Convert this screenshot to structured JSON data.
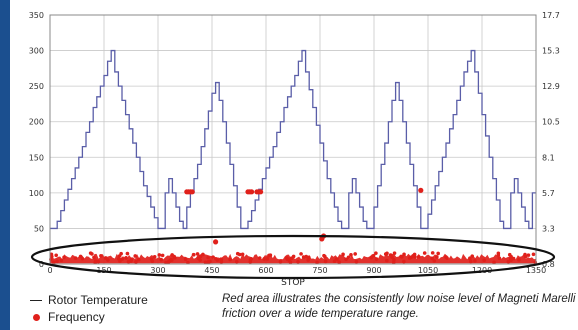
{
  "legend": {
    "line_label": "Rotor Temperature",
    "dot_label": "Frequency"
  },
  "note": "Red area illustrates the consistently low noise level of Magneti Marelli friction over a wide temperature range.",
  "colors": {
    "temperature_line": "#5a5ea8",
    "frequency_dots": "#e0201b",
    "background_frame": "#1b4f8f",
    "grid": "#c8c8c8",
    "highlight_ellipse": "#111111"
  },
  "chart_data": {
    "type": "line",
    "xlabel": "STOP",
    "xlim": [
      0,
      1350
    ],
    "ylim": [
      0,
      350
    ],
    "y2lim": [
      0.8,
      17.7
    ],
    "x_ticks": [
      "0",
      "150",
      "300",
      "450",
      "600",
      "750",
      "900",
      "1050",
      "1200",
      "1350"
    ],
    "y_ticks": [
      "0",
      "50",
      "100",
      "150",
      "200",
      "250",
      "300",
      "350"
    ],
    "y2_ticks": [
      "0.8",
      "3.3",
      "5.7",
      "8.1",
      "10.5",
      "12.9",
      "15.3",
      "17.7"
    ],
    "grid": true,
    "annotation": "ellipse around low frequency band",
    "series": [
      {
        "name": "Rotor Temperature",
        "axis": "left",
        "style": "step",
        "x": [
          0,
          10,
          20,
          30,
          40,
          50,
          60,
          70,
          80,
          90,
          100,
          110,
          120,
          130,
          140,
          150,
          160,
          170,
          180,
          190,
          200,
          210,
          220,
          230,
          240,
          250,
          260,
          270,
          280,
          290,
          300,
          310,
          320,
          330,
          340,
          350,
          360,
          370,
          380,
          390,
          400,
          410,
          420,
          430,
          440,
          450,
          460,
          470,
          480,
          490,
          500,
          510,
          520,
          530,
          540,
          550,
          560,
          570,
          580,
          590,
          600,
          610,
          620,
          630,
          640,
          650,
          660,
          670,
          680,
          690,
          700,
          710,
          720,
          730,
          740,
          750,
          760,
          770,
          780,
          790,
          800,
          810,
          820,
          830,
          840,
          850,
          860,
          870,
          880,
          890,
          900,
          910,
          920,
          930,
          940,
          950,
          960,
          970,
          980,
          990,
          1000,
          1010,
          1020,
          1030,
          1040,
          1050,
          1060,
          1070,
          1080,
          1090,
          1100,
          1110,
          1120,
          1130,
          1140,
          1150,
          1160,
          1170,
          1180,
          1190,
          1200,
          1210,
          1220,
          1230,
          1240,
          1250,
          1260,
          1270,
          1280,
          1290,
          1300,
          1310,
          1320,
          1330,
          1340
        ],
        "values": [
          50,
          50,
          60,
          75,
          90,
          105,
          120,
          135,
          150,
          165,
          185,
          200,
          220,
          235,
          250,
          265,
          285,
          300,
          270,
          250,
          230,
          210,
          190,
          170,
          150,
          130,
          110,
          95,
          80,
          65,
          50,
          50,
          100,
          120,
          100,
          80,
          60,
          50,
          80,
          100,
          120,
          140,
          165,
          190,
          215,
          240,
          255,
          230,
          200,
          170,
          140,
          110,
          80,
          50,
          50,
          60,
          75,
          90,
          105,
          120,
          135,
          150,
          165,
          185,
          200,
          220,
          235,
          250,
          265,
          285,
          300,
          270,
          245,
          220,
          195,
          170,
          145,
          120,
          100,
          80,
          60,
          50,
          50,
          100,
          120,
          100,
          80,
          60,
          50,
          50,
          80,
          110,
          140,
          170,
          200,
          230,
          255,
          230,
          200,
          170,
          140,
          110,
          80,
          50,
          50,
          70,
          90,
          110,
          130,
          150,
          170,
          190,
          210,
          230,
          250,
          270,
          285,
          300,
          270,
          240,
          210,
          180,
          150,
          120,
          90,
          60,
          50,
          50,
          100,
          120,
          100,
          80,
          60,
          50,
          100
        ]
      },
      {
        "name": "Frequency",
        "axis": "right",
        "style": "scatter",
        "band": {
          "x_from": 0,
          "x_to": 1350,
          "y_min": 0.9,
          "y_max": 1.5
        },
        "x": [
          380,
          385,
          390,
          395,
          550,
          555,
          560,
          575,
          580,
          585,
          1030,
          460,
          760,
          755
        ],
        "values": [
          5.7,
          5.7,
          5.7,
          5.7,
          5.7,
          5.7,
          5.7,
          5.7,
          5.7,
          5.7,
          5.8,
          2.3,
          2.7,
          2.5
        ]
      }
    ]
  }
}
